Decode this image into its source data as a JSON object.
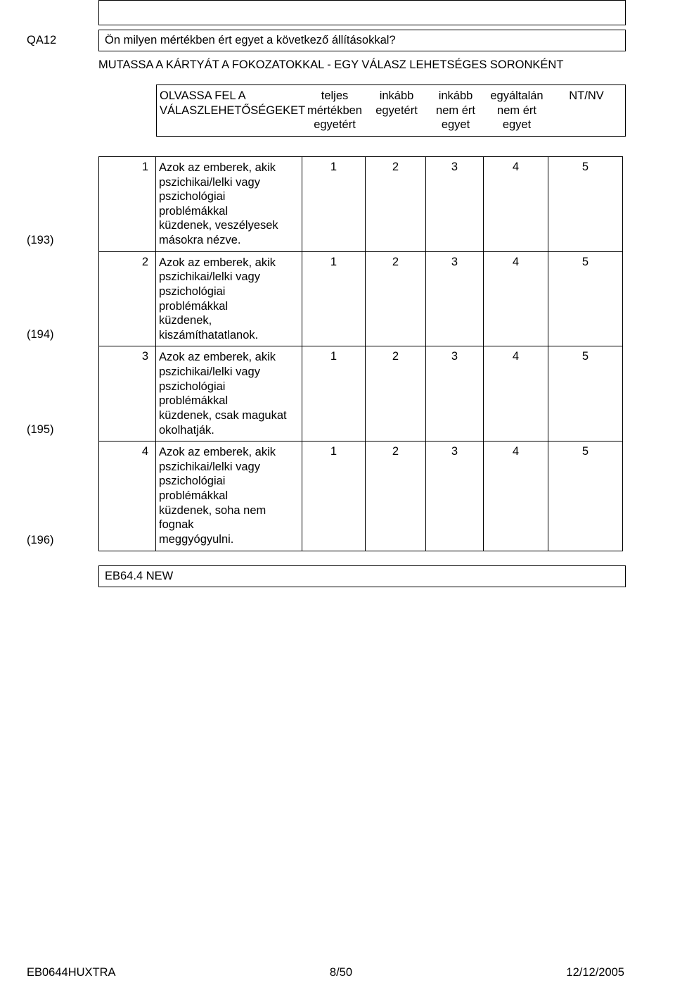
{
  "question": {
    "code": "QA12",
    "text": "Ön milyen mértékben ért egyet a következő állításokkal?",
    "instruction": "MUTASSA A KÁRTYÁT A FOKOZATOKKAL - EGY VÁLASZ LEHETSÉGES SORONKÉNT"
  },
  "header": {
    "lead_line1": "OLVASSA FEL A",
    "lead_line2": "VÁLASZLEHETŐSÉGEKET",
    "cols": [
      {
        "line1": "teljes",
        "line2": "mértékben",
        "line3": "egyetért"
      },
      {
        "line1": "inkább",
        "line2": "egyetért",
        "line3": ""
      },
      {
        "line1": "inkább",
        "line2": "nem ért",
        "line3": "egyet"
      },
      {
        "line1": "egyáltalán",
        "line2": "nem ért",
        "line3": "egyet"
      },
      {
        "line1": "NT/NV",
        "line2": "",
        "line3": ""
      }
    ]
  },
  "rows": [
    {
      "ref": "(193)",
      "n": "1",
      "text": "Azok az emberek, akik\npszichikai/lelki vagy\npszichológiai problémákkal\nküzdenek, veszélyesek\nmásokra nézve.",
      "vals": [
        "1",
        "2",
        "3",
        "4",
        "5"
      ]
    },
    {
      "ref": "(194)",
      "n": "2",
      "text": "Azok az emberek, akik\npszichikai/lelki vagy\npszichológiai problémákkal\nküzdenek,\nkiszámíthatatlanok.",
      "vals": [
        "1",
        "2",
        "3",
        "4",
        "5"
      ]
    },
    {
      "ref": "(195)",
      "n": "3",
      "text": "Azok az emberek, akik\npszichikai/lelki vagy\npszichológiai problémákkal\nküzdenek, csak magukat\nokolhatják.",
      "vals": [
        "1",
        "2",
        "3",
        "4",
        "5"
      ]
    },
    {
      "ref": "(196)",
      "n": "4",
      "text": "Azok az emberek, akik\npszichikai/lelki vagy\npszichológiai problémákkal\nküzdenek, soha nem fognak\nmeggyógyulni.",
      "vals": [
        "1",
        "2",
        "3",
        "4",
        "5"
      ]
    }
  ],
  "eb_ref": "EB64.4 NEW",
  "footer": {
    "left": "EB0644HUXTRA",
    "center": "8/50",
    "right": "12/12/2005"
  },
  "layout": {
    "col_widths": {
      "lead": 208,
      "v1": 90,
      "v2": 86,
      "v3": 82,
      "v4": 92,
      "v5": 106
    },
    "body_textcol_width": 208
  }
}
